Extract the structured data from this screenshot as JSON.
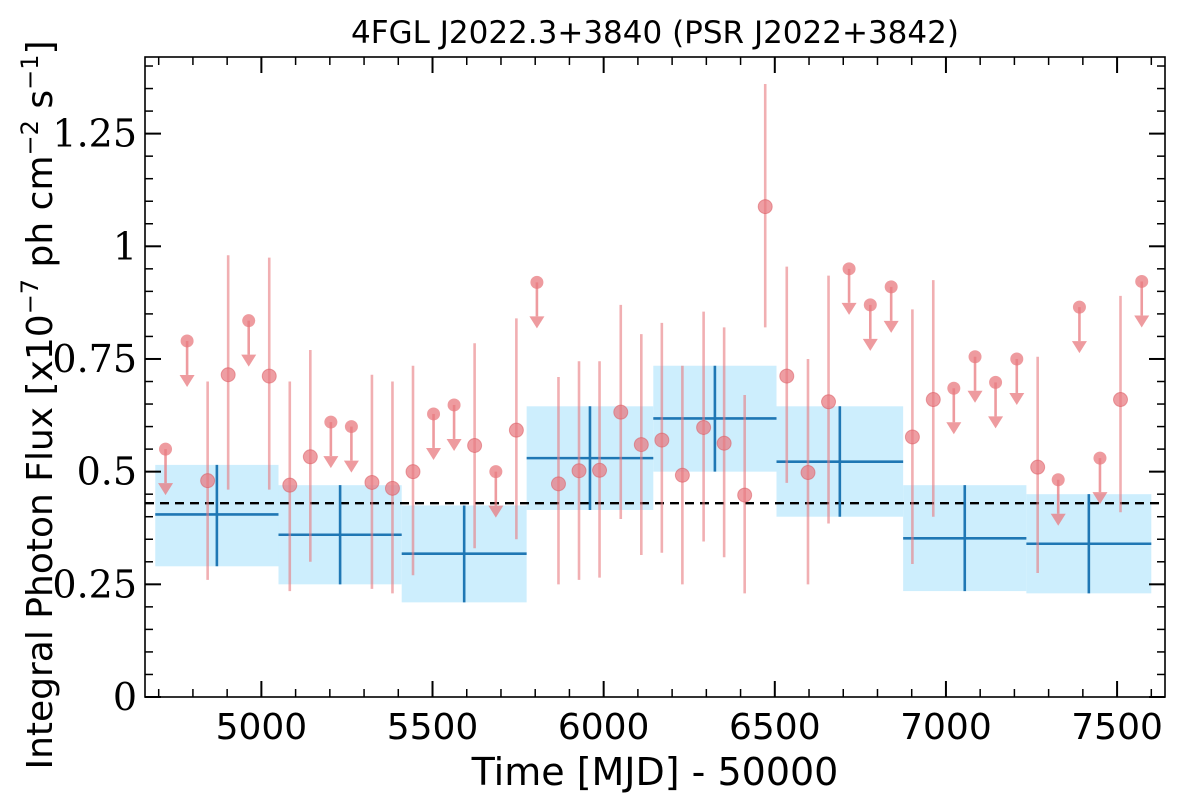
{
  "chart_data": {
    "type": "scatter",
    "title": "4FGL J2022.3+3840 (PSR J2022+3842)",
    "xlabel": "Time [MJD] - 50000",
    "ylabel_parts": [
      "Integral Photon Flux [x10",
      "−7",
      " ph cm",
      "−2",
      " s",
      "−1",
      "]"
    ],
    "xlim": [
      4660,
      7640
    ],
    "ylim": [
      0,
      1.42
    ],
    "x_ticks": [
      5000,
      5500,
      6000,
      6500,
      7000,
      7500
    ],
    "x_tick_labels": [
      "5000",
      "5500",
      "6000",
      "6500",
      "7000",
      "7500"
    ],
    "y_ticks": [
      0,
      0.25,
      0.5,
      0.75,
      1,
      1.25
    ],
    "y_tick_labels": [
      "0",
      "0.25",
      "0.5",
      "0.75",
      "1",
      "1.25"
    ],
    "mean_flux": 0.43,
    "colors": {
      "points": "#e8797f",
      "bins": "#1f77b4",
      "band": "#cdeefd",
      "mean_line": "#000000"
    },
    "binned": [
      {
        "x_start": 4690,
        "x_end": 5050,
        "flux": 0.405,
        "err_lo": 0.29,
        "err_hi": 0.515
      },
      {
        "x_start": 5050,
        "x_end": 5410,
        "flux": 0.36,
        "err_lo": 0.25,
        "err_hi": 0.47
      },
      {
        "x_start": 5410,
        "x_end": 5775,
        "flux": 0.318,
        "err_lo": 0.21,
        "err_hi": 0.425
      },
      {
        "x_start": 5775,
        "x_end": 6145,
        "flux": 0.53,
        "err_lo": 0.415,
        "err_hi": 0.645
      },
      {
        "x_start": 6145,
        "x_end": 6505,
        "flux": 0.618,
        "err_lo": 0.5,
        "err_hi": 0.735
      },
      {
        "x_start": 6505,
        "x_end": 6875,
        "flux": 0.522,
        "err_lo": 0.4,
        "err_hi": 0.645
      },
      {
        "x_start": 6875,
        "x_end": 7235,
        "flux": 0.352,
        "err_lo": 0.235,
        "err_hi": 0.47
      },
      {
        "x_start": 7235,
        "x_end": 7600,
        "flux": 0.34,
        "err_lo": 0.23,
        "err_hi": 0.45
      }
    ],
    "points": [
      {
        "x": 4720,
        "y": 0.55,
        "upper_limit": true
      },
      {
        "x": 4783,
        "y": 0.79,
        "upper_limit": true
      },
      {
        "x": 4843,
        "y": 0.48,
        "lo": 0.26,
        "hi": 0.7
      },
      {
        "x": 4903,
        "y": 0.715,
        "lo": 0.46,
        "hi": 0.98
      },
      {
        "x": 4963,
        "y": 0.835,
        "upper_limit": true
      },
      {
        "x": 5023,
        "y": 0.712,
        "lo": 0.46,
        "hi": 0.975
      },
      {
        "x": 5083,
        "y": 0.47,
        "lo": 0.235,
        "hi": 0.7
      },
      {
        "x": 5143,
        "y": 0.533,
        "lo": 0.3,
        "hi": 0.77
      },
      {
        "x": 5203,
        "y": 0.61,
        "upper_limit": true
      },
      {
        "x": 5263,
        "y": 0.6,
        "upper_limit": true
      },
      {
        "x": 5323,
        "y": 0.476,
        "lo": 0.24,
        "hi": 0.715
      },
      {
        "x": 5383,
        "y": 0.463,
        "lo": 0.23,
        "hi": 0.7
      },
      {
        "x": 5443,
        "y": 0.5,
        "lo": 0.27,
        "hi": 0.735
      },
      {
        "x": 5503,
        "y": 0.628,
        "upper_limit": true
      },
      {
        "x": 5563,
        "y": 0.648,
        "upper_limit": true
      },
      {
        "x": 5623,
        "y": 0.558,
        "lo": 0.33,
        "hi": 0.785
      },
      {
        "x": 5685,
        "y": 0.5,
        "upper_limit": true
      },
      {
        "x": 5745,
        "y": 0.592,
        "lo": 0.35,
        "hi": 0.84
      },
      {
        "x": 5805,
        "y": 0.92,
        "upper_limit": true
      },
      {
        "x": 5868,
        "y": 0.473,
        "lo": 0.25,
        "hi": 0.71
      },
      {
        "x": 5928,
        "y": 0.502,
        "lo": 0.26,
        "hi": 0.745
      },
      {
        "x": 5988,
        "y": 0.503,
        "lo": 0.265,
        "hi": 0.745
      },
      {
        "x": 6050,
        "y": 0.632,
        "lo": 0.395,
        "hi": 0.87
      },
      {
        "x": 6110,
        "y": 0.56,
        "lo": 0.315,
        "hi": 0.805
      },
      {
        "x": 6170,
        "y": 0.57,
        "lo": 0.32,
        "hi": 0.83
      },
      {
        "x": 6230,
        "y": 0.492,
        "lo": 0.25,
        "hi": 0.735
      },
      {
        "x": 6292,
        "y": 0.598,
        "lo": 0.345,
        "hi": 0.855
      },
      {
        "x": 6352,
        "y": 0.563,
        "lo": 0.31,
        "hi": 0.82
      },
      {
        "x": 6412,
        "y": 0.448,
        "lo": 0.23,
        "hi": 0.67
      },
      {
        "x": 6472,
        "y": 1.088,
        "lo": 0.82,
        "hi": 1.36
      },
      {
        "x": 6535,
        "y": 0.712,
        "lo": 0.475,
        "hi": 0.955
      },
      {
        "x": 6597,
        "y": 0.498,
        "lo": 0.25,
        "hi": 0.75
      },
      {
        "x": 6657,
        "y": 0.655,
        "lo": 0.385,
        "hi": 0.935
      },
      {
        "x": 6717,
        "y": 0.95,
        "upper_limit": true
      },
      {
        "x": 6779,
        "y": 0.87,
        "upper_limit": true
      },
      {
        "x": 6840,
        "y": 0.91,
        "upper_limit": true
      },
      {
        "x": 6902,
        "y": 0.577,
        "lo": 0.295,
        "hi": 0.86
      },
      {
        "x": 6963,
        "y": 0.66,
        "lo": 0.4,
        "hi": 0.925
      },
      {
        "x": 7023,
        "y": 0.685,
        "upper_limit": true
      },
      {
        "x": 7085,
        "y": 0.755,
        "upper_limit": true
      },
      {
        "x": 7145,
        "y": 0.698,
        "upper_limit": true
      },
      {
        "x": 7207,
        "y": 0.75,
        "upper_limit": true
      },
      {
        "x": 7268,
        "y": 0.51,
        "lo": 0.275,
        "hi": 0.755
      },
      {
        "x": 7328,
        "y": 0.482,
        "upper_limit": true
      },
      {
        "x": 7390,
        "y": 0.865,
        "upper_limit": true
      },
      {
        "x": 7450,
        "y": 0.53,
        "upper_limit": true
      },
      {
        "x": 7510,
        "y": 0.66,
        "lo": 0.41,
        "hi": 0.89
      },
      {
        "x": 7572,
        "y": 0.922,
        "upper_limit": true
      }
    ]
  }
}
